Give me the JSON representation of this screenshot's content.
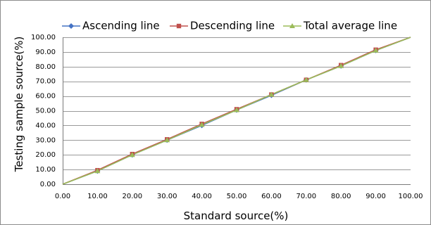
{
  "chart_data": {
    "type": "line",
    "title": "",
    "xlabel": "Standard source(%)",
    "ylabel": "Testing sample source(%)",
    "xlim": [
      0,
      100
    ],
    "ylim": [
      0,
      100
    ],
    "x_ticks": [
      "0.00",
      "10.00",
      "20.00",
      "30.00",
      "40.00",
      "50.00",
      "60.00",
      "70.00",
      "80.00",
      "90.00",
      "100.00"
    ],
    "y_ticks": [
      "0.00",
      "10.00",
      "20.00",
      "30.00",
      "40.00",
      "50.00",
      "60.00",
      "70.00",
      "80.00",
      "90.00",
      "100.00"
    ],
    "grid": true,
    "legend_position": "top",
    "x": [
      0,
      10,
      20,
      30,
      40,
      50,
      60,
      70,
      80,
      90,
      100
    ],
    "series": [
      {
        "name": "Ascending line",
        "color": "#4472C4",
        "marker": "diamond",
        "values": [
          0,
          9.0,
          20.0,
          30.0,
          40.0,
          50.5,
          60.5,
          71.0,
          80.5,
          91.0,
          100
        ]
      },
      {
        "name": "Descending line",
        "color": "#C0504D",
        "marker": "square",
        "values": [
          0,
          9.5,
          20.5,
          30.5,
          41.0,
          51.0,
          61.0,
          71.0,
          81.0,
          91.5,
          100
        ]
      },
      {
        "name": "Total average line",
        "color": "#9BBB59",
        "marker": "triangle",
        "values": [
          0,
          9.0,
          20.0,
          30.0,
          40.5,
          50.5,
          61.0,
          71.0,
          80.5,
          91.0,
          100
        ]
      }
    ]
  }
}
